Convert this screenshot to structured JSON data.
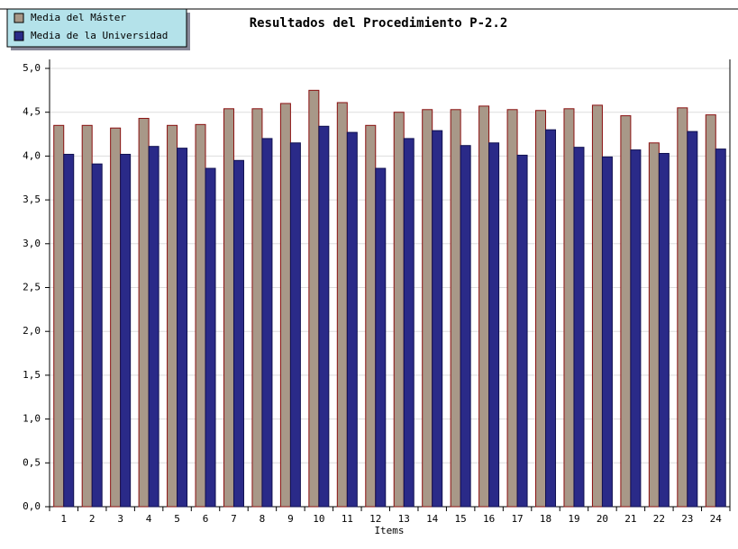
{
  "chart_data": {
    "type": "bar",
    "title": "Resultados del Procedimiento P-2.2",
    "x_label": "Items",
    "categories": [
      "1",
      "2",
      "3",
      "4",
      "5",
      "6",
      "7",
      "8",
      "9",
      "10",
      "11",
      "12",
      "13",
      "14",
      "15",
      "16",
      "17",
      "18",
      "19",
      "20",
      "21",
      "22",
      "23",
      "24"
    ],
    "series": [
      {
        "name": "Media del Máster",
        "color": "#a89888",
        "values": [
          4.35,
          4.35,
          4.32,
          4.43,
          4.35,
          4.36,
          4.54,
          4.54,
          4.6,
          4.75,
          4.61,
          4.35,
          4.5,
          4.53,
          4.53,
          4.57,
          4.53,
          4.52,
          4.54,
          4.58,
          4.46,
          4.15,
          4.55,
          4.47
        ]
      },
      {
        "name": "Media de la Universidad",
        "color": "#2a2a88",
        "values": [
          4.02,
          3.91,
          4.02,
          4.11,
          4.09,
          3.86,
          3.95,
          4.2,
          4.15,
          4.34,
          4.27,
          3.86,
          4.2,
          4.29,
          4.12,
          4.15,
          4.01,
          4.3,
          4.1,
          3.99,
          4.07,
          4.03,
          4.28,
          4.08
        ]
      }
    ],
    "ylim": [
      0,
      5
    ],
    "yticks": [
      {
        "value": 0,
        "label": "0,0"
      },
      {
        "value": 0.5,
        "label": "0,5"
      },
      {
        "value": 1,
        "label": "1,0"
      },
      {
        "value": 1.5,
        "label": "1,5"
      },
      {
        "value": 2,
        "label": "2,0"
      },
      {
        "value": 2.5,
        "label": "2,5"
      },
      {
        "value": 3,
        "label": "3,0"
      },
      {
        "value": 3.5,
        "label": "3,5"
      },
      {
        "value": 4,
        "label": "4,0"
      },
      {
        "value": 4.5,
        "label": "4,5"
      },
      {
        "value": 5,
        "label": "5,0"
      }
    ],
    "grid": true
  }
}
